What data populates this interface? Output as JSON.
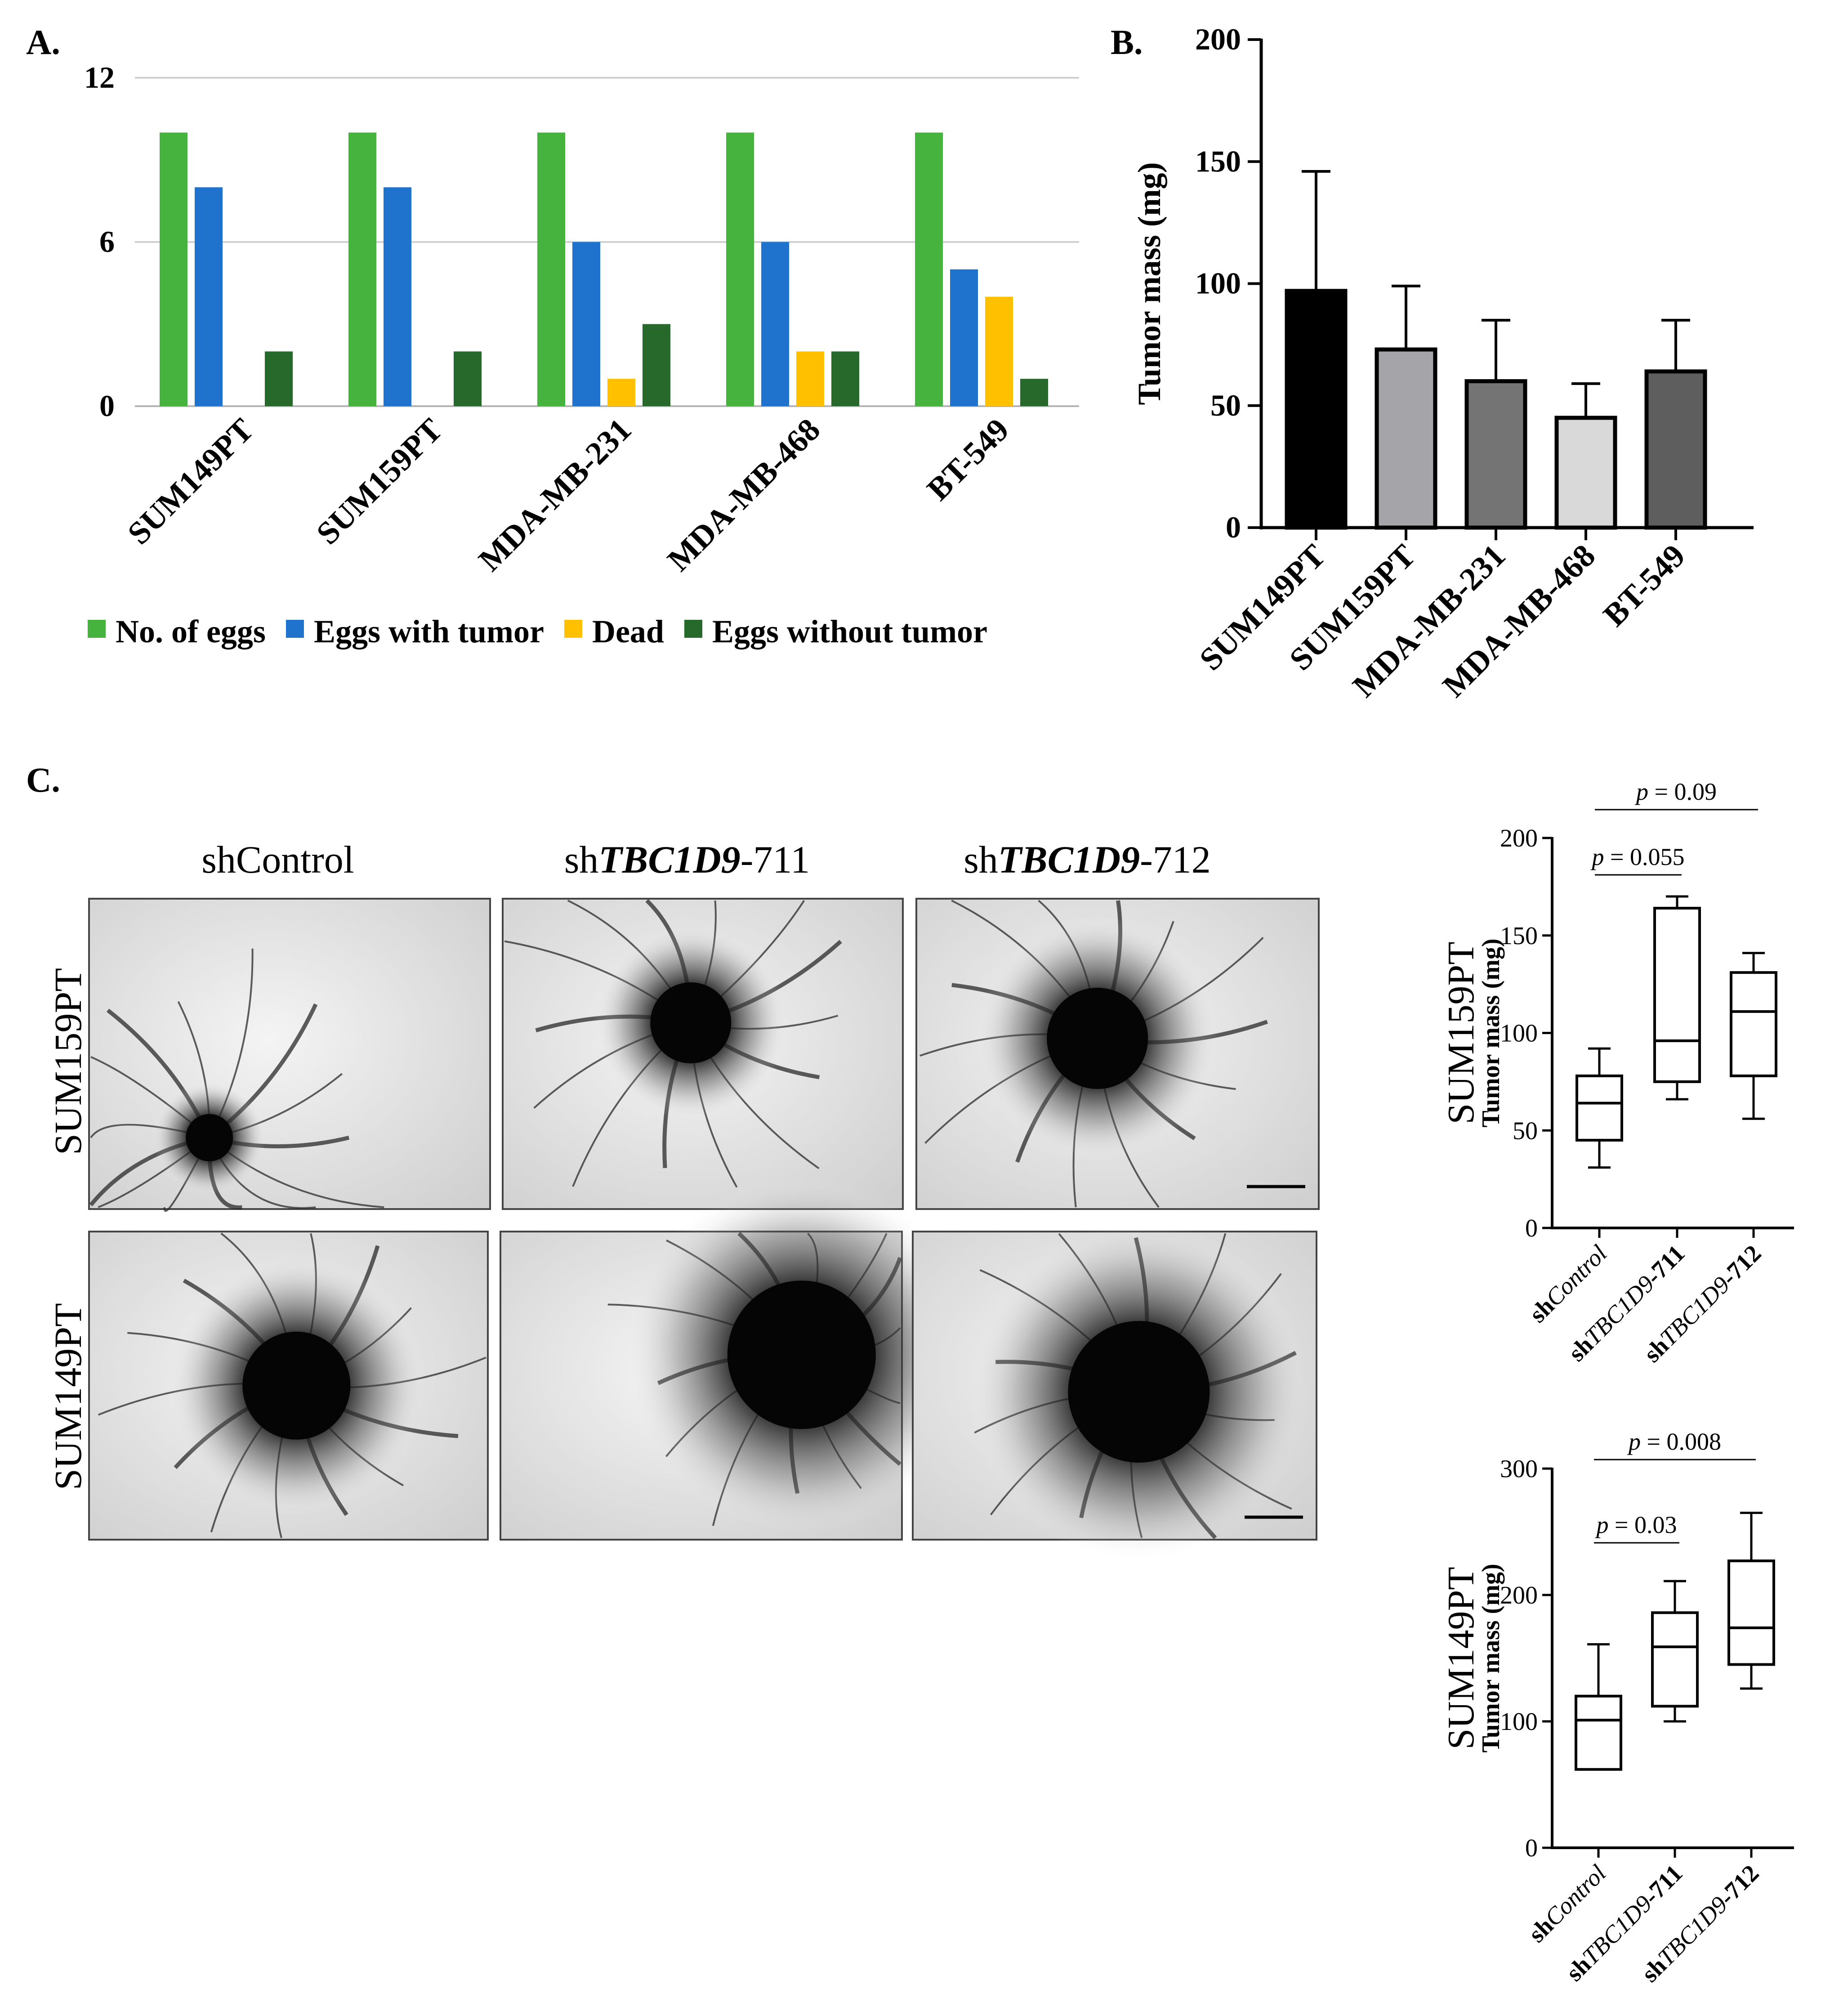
{
  "panel_labels": {
    "a": "A.",
    "b": "B.",
    "c": "C."
  },
  "colors": {
    "no_eggs": "#46b33f",
    "eggs_with_tumor": "#1f73cc",
    "dead": "#ffc000",
    "eggs_without_tumor": "#27692a",
    "text": "#000000",
    "grid": "#d0d0d0"
  },
  "panel_c": {
    "column_headers": [
      {
        "prefix": "sh",
        "italic": "Control",
        "suffix": "",
        "plain": true
      },
      {
        "prefix": "sh",
        "italic": "TBC1D9",
        "suffix": "-711",
        "plain": false
      },
      {
        "prefix": "sh",
        "italic": "TBC1D9",
        "suffix": "-712",
        "plain": false
      }
    ],
    "row_labels": [
      "SUM159PT",
      "SUM149PT"
    ],
    "image_description_note": ""
  },
  "chart_data": [
    {
      "id": "A",
      "type": "bar",
      "categories": [
        "SUM149PT",
        "SUM159PT",
        "MDA-MB-231",
        "MDA-MB-468",
        "BT-549"
      ],
      "series": [
        {
          "name": "No. of eggs",
          "values": [
            10,
            10,
            10,
            10,
            10
          ],
          "color": "#46b33f"
        },
        {
          "name": "Eggs with tumor",
          "values": [
            8,
            8,
            6,
            6,
            5
          ],
          "color": "#1f73cc"
        },
        {
          "name": "Dead",
          "values": [
            0,
            0,
            1,
            2,
            4
          ],
          "color": "#ffc000"
        },
        {
          "name": "Eggs without tumor",
          "values": [
            2,
            2,
            3,
            2,
            1
          ],
          "color": "#27692a"
        }
      ],
      "yticks": [
        0,
        6,
        12
      ],
      "ylim": [
        0,
        12
      ],
      "grid": true,
      "legend": "bottom",
      "xlabel": "",
      "ylabel": ""
    },
    {
      "id": "B",
      "type": "bar",
      "categories": [
        "SUM149PT",
        "SUM159PT",
        "MDA-MB-231",
        "MDA-MB-468",
        "BT-549"
      ],
      "values": [
        97,
        73,
        60,
        45,
        64
      ],
      "errors": [
        49,
        26,
        25,
        14,
        21
      ],
      "bar_colors": [
        "#000000",
        "#a4a4a9",
        "#747474",
        "#d9d9d9",
        "#5e5e5e"
      ],
      "ylabel": "Tumor mass (mg)",
      "yticks": [
        0,
        50,
        100,
        150,
        200
      ],
      "ylim": [
        0,
        200
      ],
      "grid": false
    },
    {
      "id": "C-SUM159PT",
      "type": "box",
      "title": "SUM159PT",
      "ylabel": "Tumor mass (mg)",
      "categories": [
        {
          "prefix": "sh",
          "italic": "Control",
          "suffix": ""
        },
        {
          "prefix": "sh",
          "italic": "TBC1D9",
          "suffix": "-711"
        },
        {
          "prefix": "sh",
          "italic": "TBC1D9",
          "suffix": "-712"
        }
      ],
      "boxes": [
        {
          "min": 31,
          "q1": 45,
          "median": 64,
          "q3": 78,
          "max": 92
        },
        {
          "min": 66,
          "q1": 75,
          "median": 96,
          "q3": 164,
          "max": 170
        },
        {
          "min": 56,
          "q1": 78,
          "median": 111,
          "q3": 131,
          "max": 141
        }
      ],
      "yticks": [
        0,
        50,
        100,
        150,
        200
      ],
      "ylim": [
        0,
        200
      ],
      "annotations": [
        {
          "from": 0,
          "to": 1,
          "text_p": "p",
          "text_val": " = 0.055"
        },
        {
          "from": 0,
          "to": 2,
          "text_p": "p",
          "text_val": " = 0.09"
        }
      ]
    },
    {
      "id": "C-SUM149PT",
      "type": "box",
      "title": "SUM149PT",
      "ylabel": "Tumor mass (mg)",
      "categories": [
        {
          "prefix": "sh",
          "italic": "Control",
          "suffix": ""
        },
        {
          "prefix": "sh",
          "italic": "TBC1D9",
          "suffix": "-711"
        },
        {
          "prefix": "sh",
          "italic": "TBC1D9",
          "suffix": "-712"
        }
      ],
      "boxes": [
        {
          "min": 62,
          "q1": 62,
          "median": 101,
          "q3": 120,
          "max": 161
        },
        {
          "min": 100,
          "q1": 112,
          "median": 159,
          "q3": 186,
          "max": 211
        },
        {
          "min": 126,
          "q1": 145,
          "median": 174,
          "q3": 227,
          "max": 265
        }
      ],
      "yticks": [
        0,
        100,
        200,
        300
      ],
      "ylim": [
        0,
        300
      ],
      "annotations": [
        {
          "from": 0,
          "to": 1,
          "text_p": "p",
          "text_val": " = 0.03"
        },
        {
          "from": 0,
          "to": 2,
          "text_p": "p",
          "text_val": " = 0.008"
        }
      ]
    }
  ]
}
